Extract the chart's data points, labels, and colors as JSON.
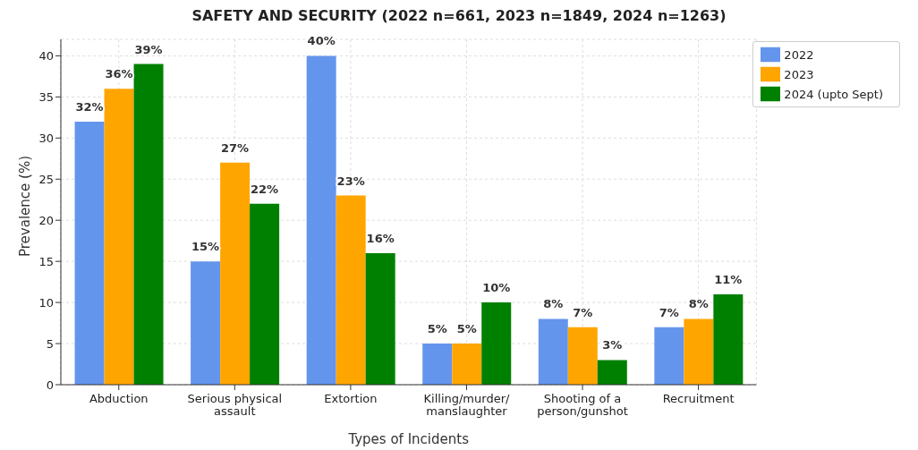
{
  "chart_data": {
    "type": "bar",
    "title": "SAFETY AND SECURITY (2022 n=661, 2023 n=1849, 2024 n=1263)",
    "xlabel": "Types of Incidents",
    "ylabel": "Prevalence (%)",
    "categories": [
      "Abduction",
      "Serious physical\nassault",
      "Extortion",
      "Killing/murder/\nmanslaughter",
      "Shooting of a\nperson/gunshot",
      "Recruitment"
    ],
    "series": [
      {
        "name": "2022",
        "color": "#6495ed",
        "values": [
          32,
          15,
          40,
          5,
          8,
          7
        ],
        "value_labels": [
          "32%",
          "15%",
          "40%",
          "5%",
          "8%",
          "7%"
        ]
      },
      {
        "name": "2023",
        "color": "#ffa500",
        "values": [
          36,
          27,
          23,
          5,
          7,
          8
        ],
        "value_labels": [
          "36%",
          "27%",
          "23%",
          "5%",
          "7%",
          "8%"
        ]
      },
      {
        "name": "2024 (upto Sept)",
        "color": "#008000",
        "values": [
          39,
          22,
          16,
          10,
          3,
          11
        ],
        "value_labels": [
          "39%",
          "22%",
          "16%",
          "10%",
          "3%",
          "11%"
        ]
      }
    ],
    "ylim": [
      0,
      42
    ],
    "yticks": [
      0,
      5,
      10,
      15,
      20,
      25,
      30,
      35,
      40
    ],
    "grid": true,
    "legend": "top right"
  }
}
